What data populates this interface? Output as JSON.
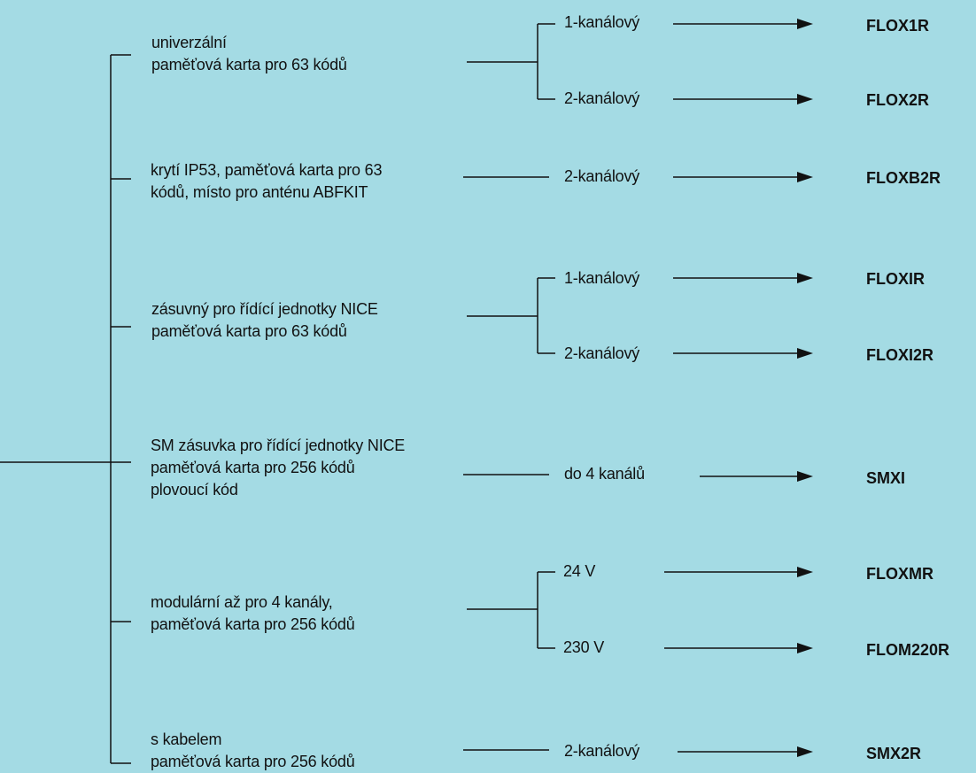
{
  "colors": {
    "background": "#a4dbe4",
    "line": "#111111",
    "text": "#111111"
  },
  "groups": [
    {
      "description": [
        "univerzální",
        "paměťová karta pro 63 kódů"
      ],
      "options": [
        {
          "label": "1-kanálový",
          "code": "FLOX1R"
        },
        {
          "label": "2-kanálový",
          "code": "FLOX2R"
        }
      ]
    },
    {
      "description": [
        "krytí IP53, paměťová karta pro 63",
        "kódů, místo pro anténu ABFKIT"
      ],
      "options": [
        {
          "label": "2-kanálový",
          "code": "FLOXB2R"
        }
      ]
    },
    {
      "description": [
        "zásuvný pro řídící jednotky NICE",
        "paměťová karta pro 63 kódů"
      ],
      "options": [
        {
          "label": "1-kanálový",
          "code": "FLOXIR"
        },
        {
          "label": "2-kanálový",
          "code": "FLOXI2R"
        }
      ]
    },
    {
      "description": [
        "SM zásuvka pro řídící jednotky NICE",
        "paměťová karta pro 256 kódů",
        "plovoucí kód"
      ],
      "options": [
        {
          "label": "do 4 kanálů",
          "code": "SMXI"
        }
      ]
    },
    {
      "description": [
        "modulární až pro 4 kanály,",
        "paměťová karta pro 256 kódů"
      ],
      "options": [
        {
          "label": "24 V",
          "code": "FLOXMR"
        },
        {
          "label": "230 V",
          "code": "FLOM220R"
        }
      ]
    },
    {
      "description": [
        "s kabelem",
        "paměťová karta pro 256 kódů"
      ],
      "options": [
        {
          "label": "2-kanálový",
          "code": "SMX2R"
        }
      ]
    }
  ]
}
